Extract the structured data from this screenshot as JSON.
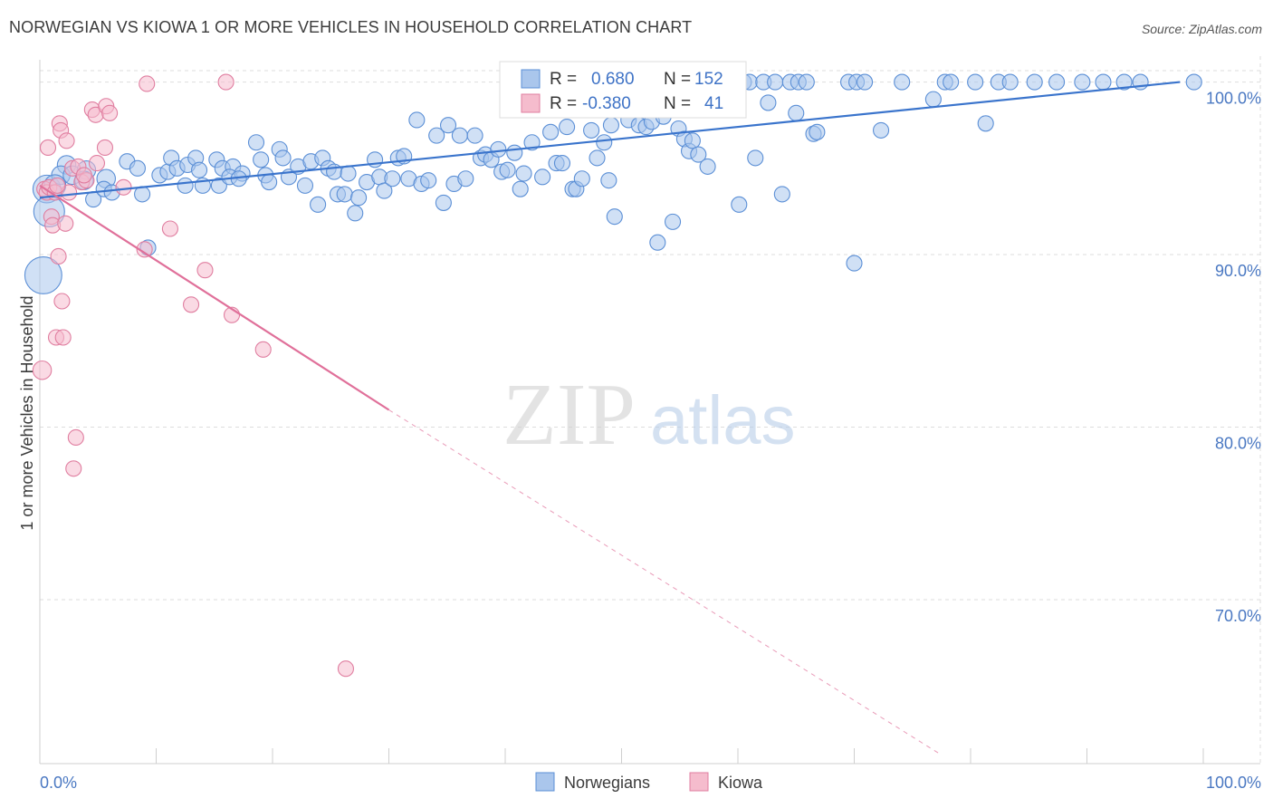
{
  "title": "NORWEGIAN VS KIOWA 1 OR MORE VEHICLES IN HOUSEHOLD CORRELATION CHART",
  "source": "Source: ZipAtlas.com",
  "watermark": {
    "zip": "ZIP",
    "atlas": "atlas"
  },
  "colors": {
    "blue_fill": "#aac6ec",
    "blue_stroke": "#5b8fd6",
    "blue_line": "#3a74cc",
    "pink_fill": "#f5bccd",
    "pink_stroke": "#e07ea0",
    "pink_line": "#e0709a",
    "grid": "#dddddd",
    "tick_text": "#4a78c2"
  },
  "stats": {
    "r_label": "R =",
    "n_label": "N =",
    "norwegians": {
      "r": "0.680",
      "n": "152"
    },
    "kiowa": {
      "r": "-0.380",
      "n": "41"
    }
  },
  "chart_data": {
    "type": "scatter",
    "title": "NORWEGIAN VS KIOWA 1 OR MORE VEHICLES IN HOUSEHOLD CORRELATION CHART",
    "xlabel": "",
    "ylabel": "1 or more Vehicles in Household",
    "xlim": [
      0,
      100
    ],
    "ylim": [
      60.5,
      101.5
    ],
    "x_tick_labels": [
      "0.0%",
      "100.0%"
    ],
    "y_ticks": [
      100,
      90,
      80,
      70
    ],
    "y_tick_labels": [
      "100.0%",
      "90.0%",
      "80.0%",
      "70.0%"
    ],
    "grid": true,
    "legend_position": "bottom-center",
    "series": [
      {
        "name": "Norwegians",
        "color": "#5b8fd6",
        "trend": {
          "x": [
            0,
            98
          ],
          "y": [
            93.3,
            100.0
          ],
          "dashed_to": null
        },
        "points": [
          [
            0.6,
            93.8,
            18
          ],
          [
            0.8,
            92.5,
            20
          ],
          [
            0.3,
            88.8,
            24
          ],
          [
            2.3,
            95.2,
            12
          ],
          [
            1.8,
            94.6,
            12
          ],
          [
            2.8,
            94.6,
            12
          ],
          [
            1.3,
            94.0,
            14
          ],
          [
            4.0,
            94.9,
            12
          ],
          [
            3.8,
            94.3,
            12
          ],
          [
            4.6,
            93.2,
            10
          ],
          [
            5.7,
            94.4,
            12
          ],
          [
            5.5,
            93.8,
            10
          ],
          [
            6.2,
            93.6,
            10
          ],
          [
            7.5,
            95.4,
            10
          ],
          [
            8.4,
            95.0,
            10
          ],
          [
            8.8,
            93.5,
            10
          ],
          [
            10.3,
            94.6,
            10
          ],
          [
            11.0,
            94.8,
            10
          ],
          [
            11.3,
            95.6,
            10
          ],
          [
            11.8,
            95.0,
            10
          ],
          [
            12.7,
            95.2,
            10
          ],
          [
            12.5,
            94.0,
            10
          ],
          [
            13.4,
            95.6,
            10
          ],
          [
            13.7,
            94.9,
            10
          ],
          [
            14.0,
            94.0,
            10
          ],
          [
            15.2,
            95.5,
            10
          ],
          [
            15.7,
            95.0,
            10
          ],
          [
            15.4,
            94.0,
            10
          ],
          [
            16.6,
            95.1,
            10
          ],
          [
            16.3,
            94.5,
            10
          ],
          [
            17.4,
            94.7,
            10
          ],
          [
            17.1,
            94.4,
            10
          ],
          [
            18.6,
            96.5,
            10
          ],
          [
            19.0,
            95.5,
            10
          ],
          [
            19.4,
            94.6,
            10
          ],
          [
            19.7,
            94.2,
            10
          ],
          [
            20.6,
            96.1,
            10
          ],
          [
            20.9,
            95.6,
            10
          ],
          [
            21.4,
            94.5,
            10
          ],
          [
            22.2,
            95.1,
            10
          ],
          [
            22.8,
            94.0,
            10
          ],
          [
            23.3,
            95.4,
            10
          ],
          [
            23.9,
            92.9,
            10
          ],
          [
            24.3,
            95.6,
            10
          ],
          [
            24.8,
            95.0,
            10
          ],
          [
            25.3,
            94.8,
            10
          ],
          [
            25.6,
            93.5,
            10
          ],
          [
            26.2,
            93.5,
            10
          ],
          [
            26.5,
            94.7,
            10
          ],
          [
            27.1,
            92.4,
            10
          ],
          [
            27.4,
            93.3,
            10
          ],
          [
            28.1,
            94.2,
            10
          ],
          [
            28.8,
            95.5,
            10
          ],
          [
            29.2,
            94.5,
            10
          ],
          [
            29.6,
            93.7,
            10
          ],
          [
            30.3,
            94.4,
            10
          ],
          [
            30.8,
            95.6,
            10
          ],
          [
            31.3,
            95.7,
            10
          ],
          [
            31.7,
            94.4,
            10
          ],
          [
            32.4,
            97.8,
            10
          ],
          [
            32.8,
            94.1,
            10
          ],
          [
            33.4,
            94.3,
            10
          ],
          [
            34.1,
            96.9,
            10
          ],
          [
            34.7,
            93.0,
            10
          ],
          [
            35.1,
            97.5,
            10
          ],
          [
            35.6,
            94.1,
            10
          ],
          [
            36.1,
            96.9,
            10
          ],
          [
            36.6,
            94.4,
            10
          ],
          [
            37.4,
            96.9,
            10
          ],
          [
            37.9,
            95.6,
            10
          ],
          [
            38.3,
            95.8,
            10
          ],
          [
            38.8,
            95.5,
            10
          ],
          [
            39.4,
            96.1,
            10
          ],
          [
            39.7,
            94.8,
            10
          ],
          [
            40.2,
            94.9,
            10
          ],
          [
            40.8,
            95.9,
            10
          ],
          [
            41.3,
            93.8,
            10
          ],
          [
            41.6,
            94.7,
            10
          ],
          [
            42.3,
            96.5,
            10
          ],
          [
            42.8,
            99.2,
            10
          ],
          [
            43.2,
            94.5,
            10
          ],
          [
            43.9,
            97.1,
            10
          ],
          [
            44.4,
            95.3,
            10
          ],
          [
            44.9,
            95.3,
            10
          ],
          [
            45.3,
            97.4,
            10
          ],
          [
            45.8,
            93.8,
            10
          ],
          [
            46.1,
            93.8,
            10
          ],
          [
            46.6,
            94.4,
            10
          ],
          [
            47.1,
            99.0,
            10
          ],
          [
            47.4,
            97.2,
            10
          ],
          [
            47.9,
            95.6,
            10
          ],
          [
            48.5,
            96.5,
            10
          ],
          [
            48.9,
            94.3,
            10
          ],
          [
            49.1,
            97.5,
            10
          ],
          [
            49.4,
            92.2,
            10
          ],
          [
            50.1,
            98.5,
            10
          ],
          [
            50.6,
            97.8,
            10
          ],
          [
            51.5,
            97.5,
            10
          ],
          [
            52.1,
            97.4,
            10
          ],
          [
            52.6,
            97.7,
            10
          ],
          [
            53.1,
            90.7,
            10
          ],
          [
            53.6,
            98.0,
            10
          ],
          [
            54.4,
            91.9,
            10
          ],
          [
            54.9,
            97.3,
            10
          ],
          [
            55.4,
            96.7,
            10
          ],
          [
            55.8,
            96.0,
            10
          ],
          [
            56.1,
            96.6,
            10
          ],
          [
            56.6,
            95.8,
            10
          ],
          [
            57.4,
            95.1,
            10
          ],
          [
            58.2,
            99.0,
            10
          ],
          [
            58.7,
            100.0,
            10
          ],
          [
            59.2,
            100.0,
            10
          ],
          [
            60.1,
            92.9,
            10
          ],
          [
            60.5,
            100.0,
            10
          ],
          [
            61.0,
            100.0,
            10
          ],
          [
            61.5,
            95.6,
            10
          ],
          [
            62.2,
            100.0,
            10
          ],
          [
            62.6,
            98.8,
            10
          ],
          [
            63.2,
            100.0,
            10
          ],
          [
            63.8,
            93.5,
            10
          ],
          [
            64.5,
            100.0,
            10
          ],
          [
            65.0,
            98.2,
            10
          ],
          [
            65.2,
            100.0,
            10
          ],
          [
            65.9,
            100.0,
            10
          ],
          [
            66.5,
            97.0,
            10
          ],
          [
            66.8,
            97.1,
            10
          ],
          [
            69.5,
            100.0,
            10
          ],
          [
            70.0,
            89.5,
            10
          ],
          [
            70.2,
            100.0,
            10
          ],
          [
            70.9,
            100.0,
            10
          ],
          [
            72.3,
            97.2,
            10
          ],
          [
            74.1,
            100.0,
            10
          ],
          [
            76.8,
            99.0,
            10
          ],
          [
            77.8,
            100.0,
            10
          ],
          [
            78.3,
            100.0,
            10
          ],
          [
            80.4,
            100.0,
            10
          ],
          [
            81.3,
            97.6,
            10
          ],
          [
            82.4,
            100.0,
            10
          ],
          [
            83.4,
            100.0,
            10
          ],
          [
            85.5,
            100.0,
            10
          ],
          [
            87.4,
            100.0,
            10
          ],
          [
            89.6,
            100.0,
            10
          ],
          [
            91.4,
            100.0,
            10
          ],
          [
            93.2,
            100.0,
            10
          ],
          [
            94.6,
            100.0,
            10
          ],
          [
            99.2,
            100.0,
            10
          ],
          [
            9.3,
            90.4,
            10
          ]
        ]
      },
      {
        "name": "Kiowa",
        "color": "#e07ea0",
        "trend": {
          "x": [
            0,
            30
          ],
          "y": [
            94.0,
            81.0
          ],
          "dashed_to": [
            77.5,
            61.0
          ]
        },
        "points": [
          [
            0.2,
            83.3,
            12
          ],
          [
            0.4,
            93.8,
            10
          ],
          [
            0.6,
            93.6,
            10
          ],
          [
            0.7,
            96.2,
            10
          ],
          [
            0.8,
            93.9,
            10
          ],
          [
            1.0,
            92.2,
            10
          ],
          [
            1.1,
            91.7,
            10
          ],
          [
            1.3,
            93.6,
            10
          ],
          [
            1.4,
            85.2,
            10
          ],
          [
            1.6,
            89.9,
            10
          ],
          [
            1.7,
            97.6,
            10
          ],
          [
            1.8,
            97.2,
            10
          ],
          [
            1.9,
            87.3,
            10
          ],
          [
            2.0,
            85.2,
            10
          ],
          [
            2.3,
            96.6,
            10
          ],
          [
            2.5,
            93.6,
            10
          ],
          [
            2.8,
            95.0,
            10
          ],
          [
            3.1,
            79.4,
            10
          ],
          [
            2.9,
            77.6,
            10
          ],
          [
            3.3,
            95.1,
            10
          ],
          [
            3.6,
            94.2,
            10
          ],
          [
            4.0,
            94.3,
            10
          ],
          [
            4.5,
            98.4,
            10
          ],
          [
            4.8,
            98.1,
            10
          ],
          [
            4.9,
            95.3,
            10
          ],
          [
            5.6,
            96.2,
            10
          ],
          [
            5.7,
            98.6,
            10
          ],
          [
            6.0,
            98.2,
            10
          ],
          [
            7.2,
            93.9,
            10
          ],
          [
            9.0,
            90.3,
            10
          ],
          [
            9.2,
            99.9,
            10
          ],
          [
            11.2,
            91.5,
            10
          ],
          [
            13.0,
            87.1,
            10
          ],
          [
            14.2,
            89.1,
            10
          ],
          [
            16.0,
            100.0,
            10
          ],
          [
            16.5,
            86.5,
            10
          ],
          [
            19.2,
            84.5,
            10
          ],
          [
            26.3,
            66.0,
            10
          ],
          [
            1.5,
            94.0,
            10
          ],
          [
            3.8,
            94.6,
            10
          ],
          [
            2.2,
            91.8,
            10
          ]
        ]
      }
    ]
  },
  "legend": [
    {
      "name": "Norwegians",
      "color_key": "blue"
    },
    {
      "name": "Kiowa",
      "color_key": "pink"
    }
  ]
}
